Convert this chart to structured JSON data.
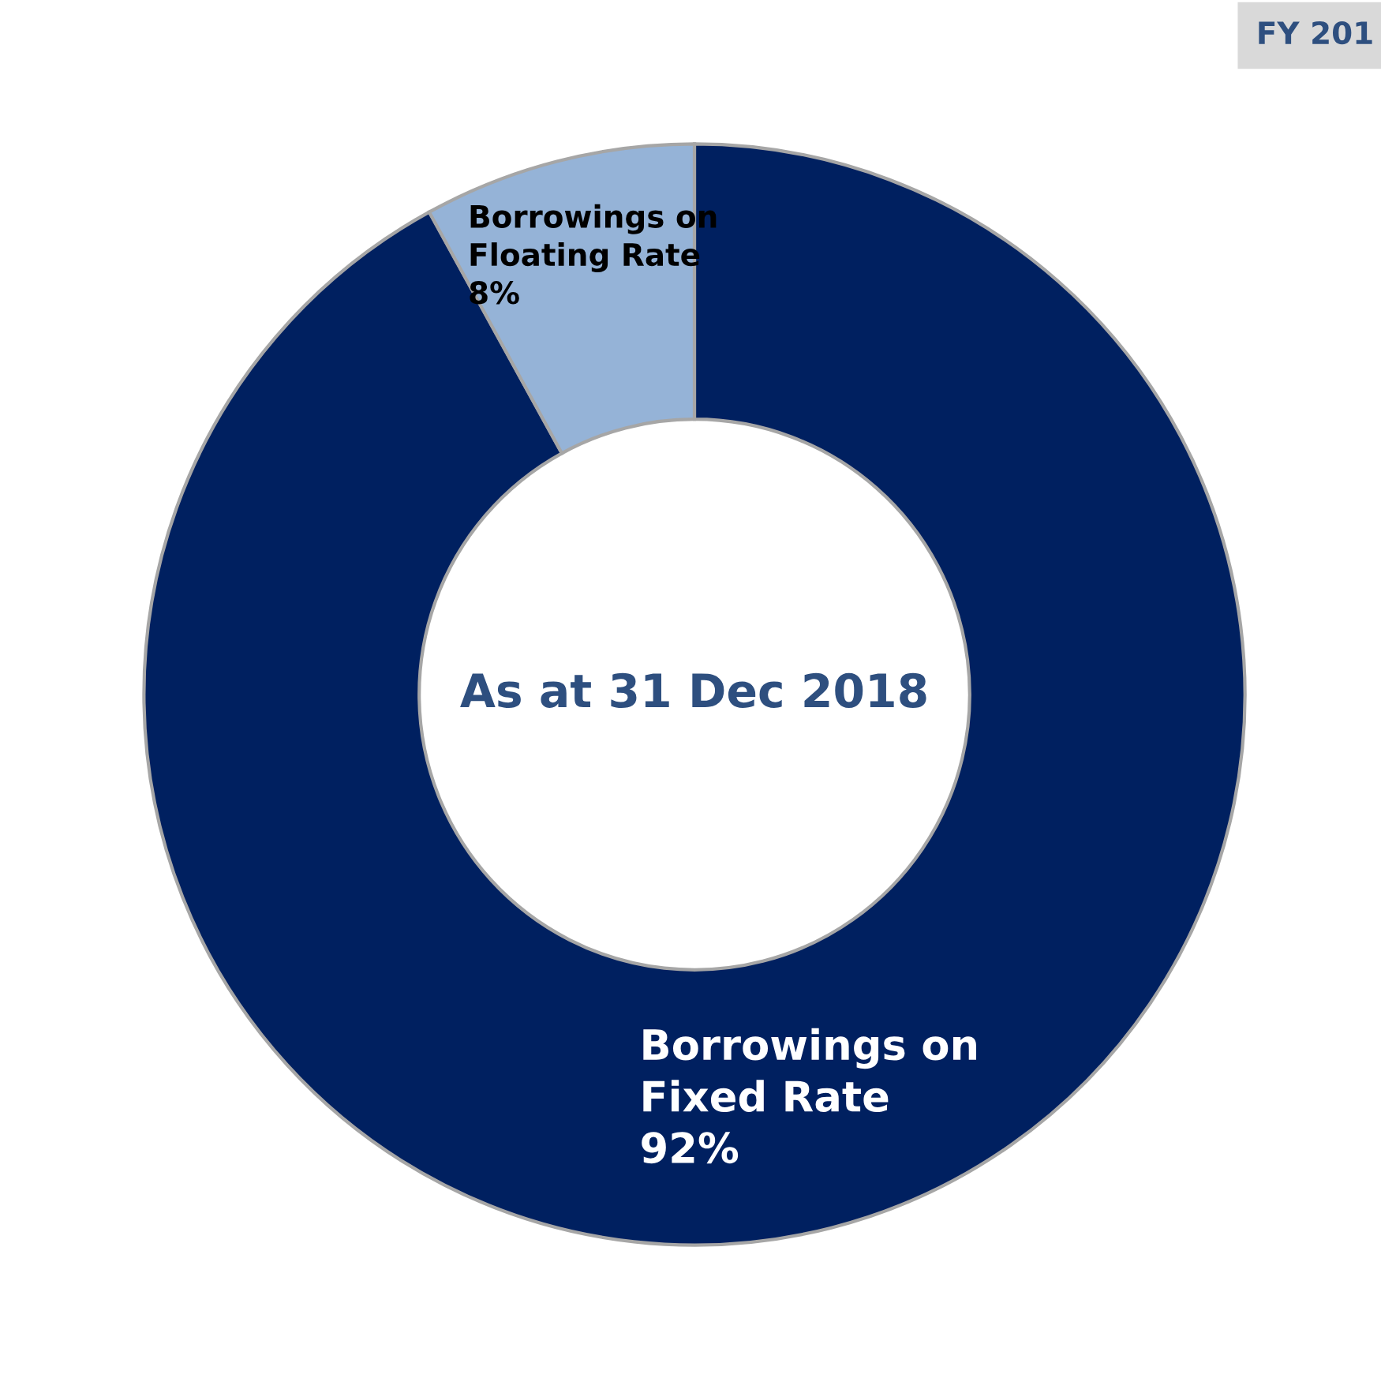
{
  "chart_data": {
    "type": "donut",
    "title": "As at 31 Dec 2018",
    "categories": [
      "Borrowings on\nFixed Rate",
      "Borrowings on\nFloating Rate"
    ],
    "values": [
      92,
      8
    ],
    "colors": [
      "#002060",
      "#95b3d7"
    ],
    "value_labels": [
      "92%",
      "8%"
    ],
    "annotations": [
      "FY 201"
    ]
  }
}
